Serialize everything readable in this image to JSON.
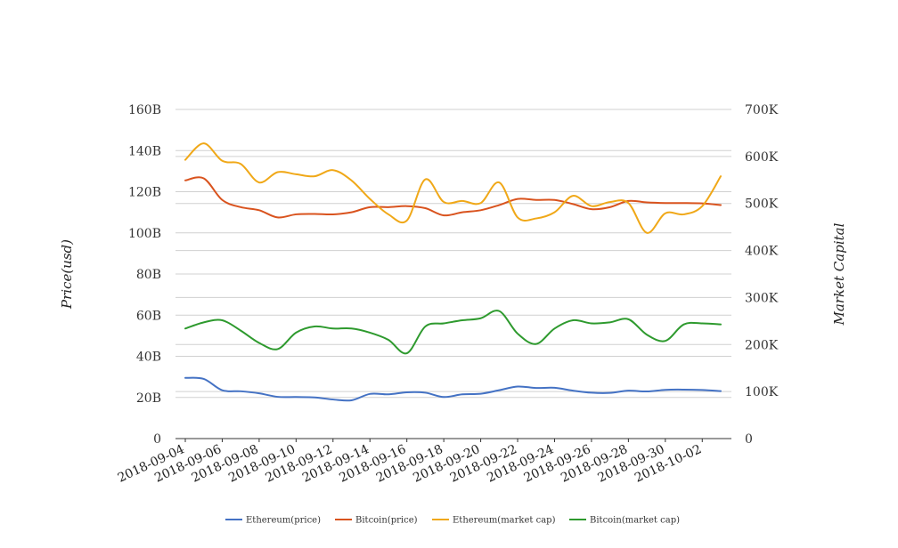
{
  "chart_data": {
    "type": "line",
    "x": [
      "2018-09-04",
      "2018-09-05",
      "2018-09-06",
      "2018-09-07",
      "2018-09-08",
      "2018-09-09",
      "2018-09-10",
      "2018-09-11",
      "2018-09-12",
      "2018-09-13",
      "2018-09-14",
      "2018-09-15",
      "2018-09-16",
      "2018-09-17",
      "2018-09-18",
      "2018-09-19",
      "2018-09-20",
      "2018-09-21",
      "2018-09-22",
      "2018-09-23",
      "2018-09-24",
      "2018-09-25",
      "2018-09-26",
      "2018-09-27",
      "2018-09-28",
      "2018-09-29",
      "2018-09-30",
      "2018-10-01",
      "2018-10-02",
      "2018-10-03"
    ],
    "x_tick_labels": [
      "2018-09-04",
      "2018-09-06",
      "2018-09-08",
      "2018-09-10",
      "2018-09-12",
      "2018-09-14",
      "2018-09-16",
      "2018-09-18",
      "2018-09-20",
      "2018-09-22",
      "2018-09-24",
      "2018-09-26",
      "2018-09-28",
      "2018-09-30",
      "2018-10-02"
    ],
    "ylabel": "Price(usd)",
    "y2label": "Market Capital",
    "ylim": [
      0,
      160000000000
    ],
    "y2lim": [
      0,
      700000
    ],
    "y_ticks": [
      0,
      20000000000,
      40000000000,
      60000000000,
      80000000000,
      100000000000,
      120000000000,
      140000000000,
      160000000000
    ],
    "y_tick_labels": [
      "0",
      "20B",
      "40B",
      "60B",
      "80B",
      "100B",
      "120B",
      "140B",
      "160B"
    ],
    "y2_ticks": [
      0,
      100000,
      200000,
      300000,
      400000,
      500000,
      600000,
      700000
    ],
    "y2_tick_labels": [
      "0",
      "100K",
      "200K",
      "300K",
      "400K",
      "500K",
      "600K",
      "700K"
    ],
    "grid": true,
    "legend_position": "bottom",
    "series": [
      {
        "name": "Ethereum(price)",
        "color": "#4472c4",
        "values": [
          29.5,
          29,
          23.5,
          23,
          22,
          20.3,
          20.2,
          20,
          19,
          18.6,
          21.7,
          21.5,
          22.5,
          22.3,
          20.2,
          21.5,
          21.8,
          23.5,
          25.3,
          24.6,
          24.7,
          23.3,
          22.3,
          22.2,
          23.3,
          22.9,
          23.7,
          23.8,
          23.6,
          23.1
        ]
      },
      {
        "name": "Bitcoin(price)",
        "color": "#d9531e",
        "values": [
          125.5,
          126.5,
          116,
          112.5,
          111,
          107.5,
          109,
          109.2,
          109,
          110,
          112.5,
          112.5,
          113,
          112,
          108.5,
          110,
          111,
          113.5,
          116.5,
          116,
          116,
          114,
          111.5,
          112.5,
          115.5,
          114.8,
          114.5,
          114.5,
          114.3,
          113.5
        ]
      },
      {
        "name": "Ethereum(market cap)",
        "color": "#f0a818",
        "values": [
          135.5,
          143.5,
          135,
          133.5,
          124.5,
          129.5,
          128.5,
          127.5,
          130.5,
          125.5,
          116.5,
          109,
          106,
          126,
          115,
          115.5,
          114.5,
          124.5,
          107.5,
          107,
          110,
          118,
          113,
          115,
          114.5,
          100,
          109.5,
          109,
          113,
          127.5
        ]
      },
      {
        "name": "Bitcoin(market cap)",
        "color": "#2e9a2e",
        "values": [
          53.5,
          56.5,
          57.5,
          52.5,
          46.5,
          43.5,
          51.5,
          54.5,
          53.5,
          53.5,
          51.5,
          48,
          41.5,
          54.5,
          56,
          57.5,
          58.5,
          62,
          51,
          46,
          53.5,
          57.5,
          56,
          56.5,
          58,
          50.5,
          47.5,
          55.5,
          56,
          55.5
        ]
      }
    ]
  }
}
